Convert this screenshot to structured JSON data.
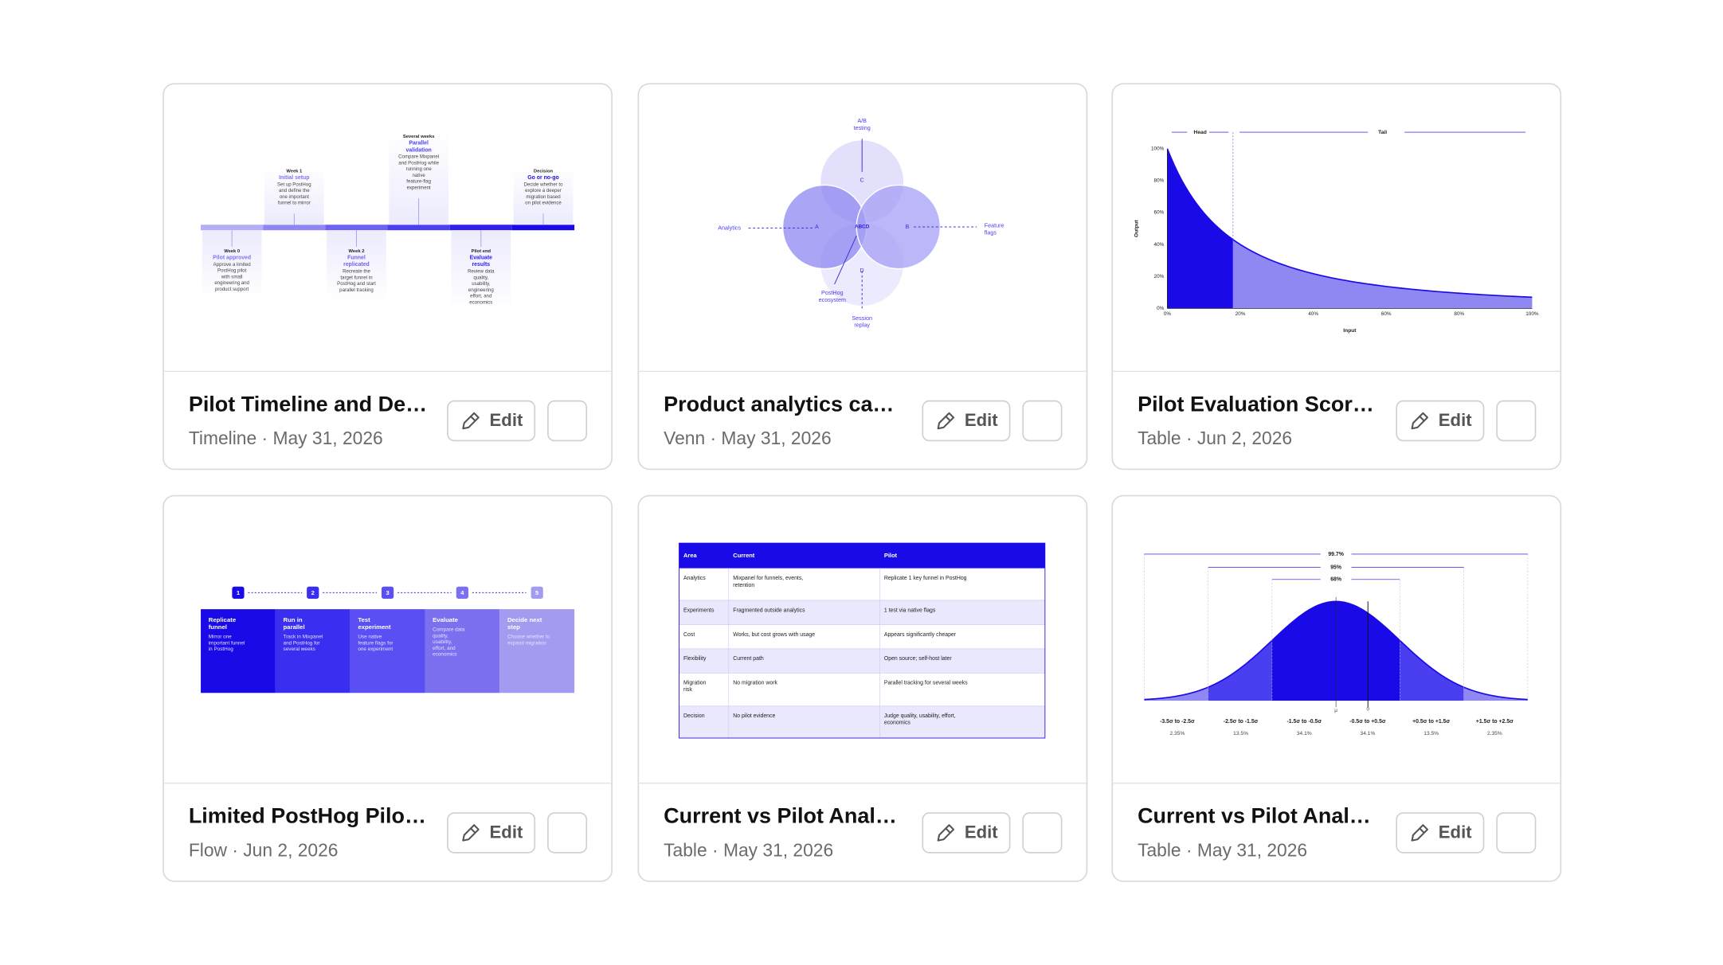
{
  "cards": [
    {
      "title": "Pilot Timeline and De…",
      "meta": "Timeline · May 31, 2026",
      "edit": "Edit",
      "preview": {
        "type": "timeline",
        "milestones": [
          {
            "when": "Week 0",
            "title": [
              "Pilot approved"
            ],
            "lines": [
              "Approve a limited",
              "PostHog pilot",
              "with small",
              "engineering and",
              "product support"
            ]
          },
          {
            "when": "Week 1",
            "title": [
              "Initial setup"
            ],
            "lines": [
              "Set up PostHog",
              "and define the",
              "one important",
              "funnel to mirror"
            ]
          },
          {
            "when": "Week 2",
            "title": [
              "Funnel",
              "replicated"
            ],
            "lines": [
              "Recreate the",
              "target funnel in",
              "PostHog and start",
              "parallel tracking"
            ]
          },
          {
            "when": "Several weeks",
            "title": [
              "Parallel",
              "validation"
            ],
            "lines": [
              "Compare Mixpanel",
              "and PostHog while",
              "running one",
              "native",
              "feature-flag",
              "experiment"
            ]
          },
          {
            "when": "Pilot end",
            "title": [
              "Evaluate",
              "results"
            ],
            "lines": [
              "Review data",
              "quality,",
              "usability,",
              "engineering",
              "effort, and",
              "economics"
            ]
          },
          {
            "when": "Decision",
            "title": [
              "Go or no-go"
            ],
            "lines": [
              "Decide whether to",
              "explore a deeper",
              "migration based",
              "on pilot evidence"
            ]
          }
        ]
      }
    },
    {
      "title": "Product analytics ca…",
      "meta": "Venn · May 31, 2026",
      "edit": "Edit",
      "preview": {
        "type": "venn",
        "sets": [
          "A",
          "B",
          "C",
          "D"
        ],
        "center": "ABCD",
        "labels": [
          [
            "A/B",
            "testing"
          ],
          [
            "Analytics"
          ],
          [
            "Feature",
            "flags"
          ],
          [
            "PostHog",
            "ecosystem"
          ],
          [
            "Session",
            "replay"
          ]
        ]
      }
    },
    {
      "title": "Pilot Evaluation Scor…",
      "meta": "Table · Jun 2, 2026",
      "edit": "Edit",
      "preview": {
        "type": "curve",
        "head": "Head",
        "tail": "Tail",
        "ylabel": "Output",
        "xlabel": "Input",
        "yticks": [
          "0%",
          "20%",
          "40%",
          "60%",
          "80%",
          "100%"
        ],
        "xticks": [
          "0%",
          "20%",
          "40%",
          "60%",
          "80%",
          "100%"
        ]
      }
    },
    {
      "title": "Limited PostHog Pilo…",
      "meta": "Flow · Jun 2, 2026",
      "edit": "Edit",
      "preview": {
        "type": "flow",
        "steps": [
          {
            "num": 1,
            "title": [
              "Replicate",
              "funnel"
            ],
            "lines": [
              "Mirror one",
              "important funnel",
              "in PostHog"
            ]
          },
          {
            "num": 2,
            "title": [
              "Run in",
              "parallel"
            ],
            "lines": [
              "Track in Mixpanel",
              "and PostHog for",
              "several weeks"
            ]
          },
          {
            "num": 3,
            "title": [
              "Test",
              "experiment"
            ],
            "lines": [
              "Use native",
              "feature flags for",
              "one experiment"
            ]
          },
          {
            "num": 4,
            "title": [
              "Evaluate"
            ],
            "lines": [
              "Compare data",
              "quality,",
              "usability,",
              "effort, and",
              "economics"
            ]
          },
          {
            "num": 5,
            "title": [
              "Decide next",
              "step"
            ],
            "lines": [
              "Choose whether to",
              "expand migration"
            ]
          }
        ]
      }
    },
    {
      "title": "Current vs Pilot Anal…",
      "meta": "Table · May 31, 2026",
      "edit": "Edit",
      "preview": {
        "type": "table",
        "header": [
          "Area",
          "Current",
          "Pilot"
        ],
        "rows": [
          [
            [
              "Analytics"
            ],
            [
              "Mixpanel for funnels, events,",
              "retention"
            ],
            [
              "Replicate 1 key funnel in PostHog"
            ]
          ],
          [
            [
              "Experiments"
            ],
            [
              "Fragmented outside analytics"
            ],
            [
              "1 test via native flags"
            ]
          ],
          [
            [
              "Cost"
            ],
            [
              "Works, but cost grows with usage"
            ],
            [
              "Appears significantly cheaper"
            ]
          ],
          [
            [
              "Flexibility"
            ],
            [
              "Current path"
            ],
            [
              "Open source; self-host later"
            ]
          ],
          [
            [
              "Migration",
              "risk"
            ],
            [
              "No migration work"
            ],
            [
              "Parallel tracking for several weeks"
            ]
          ],
          [
            [
              "Decision"
            ],
            [
              "No pilot evidence"
            ],
            [
              "Judge quality, usability, effort,",
              "economics"
            ]
          ]
        ]
      }
    },
    {
      "title": "Current vs Pilot Anal…",
      "meta": "Table · May 31, 2026",
      "edit": "Edit",
      "preview": {
        "type": "normal",
        "spans": [
          "99.7%",
          "95%",
          "68%"
        ],
        "ranges": [
          "-3.5σ to -2.5σ",
          "-2.5σ to -1.5σ",
          "-1.5σ to -0.5σ",
          "-0.5σ to +0.5σ",
          "+0.5σ to +1.5σ",
          "+1.5σ to +2.5σ"
        ],
        "shares": [
          "2.35%",
          "13.5%",
          "34.1%",
          "34.1%",
          "13.5%",
          "2.35%"
        ],
        "mu": "μ",
        "zero": "0"
      }
    }
  ]
}
